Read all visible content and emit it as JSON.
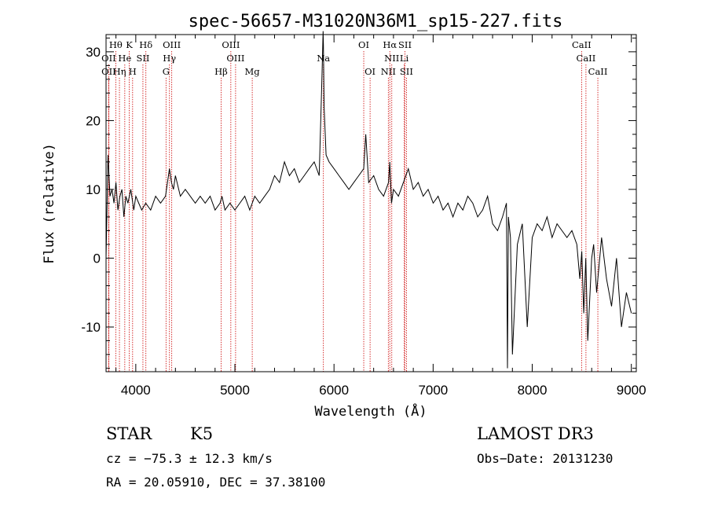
{
  "chart_data": {
    "type": "line",
    "title": "spec-56657-M31020N36M1_sp15-227.fits",
    "xlabel": "Wavelength (Å)",
    "ylabel": "Flux (relative)",
    "xlim": [
      3700,
      9050
    ],
    "ylim": [
      -16.5,
      32.5
    ],
    "xticks": [
      4000,
      5000,
      6000,
      7000,
      8000,
      9000
    ],
    "yticks": [
      -10,
      0,
      10,
      20,
      30
    ],
    "grid": false,
    "series": [
      {
        "x": [
          3700,
          3720,
          3740,
          3760,
          3780,
          3800,
          3820,
          3840,
          3860,
          3880,
          3900,
          3920,
          3950,
          3980,
          4000,
          4030,
          4060,
          4100,
          4150,
          4200,
          4250,
          4300,
          4320,
          4340,
          4360,
          4380,
          4400,
          4450,
          4500,
          4550,
          4600,
          4650,
          4700,
          4750,
          4800,
          4850,
          4870,
          4900,
          4950,
          5000,
          5050,
          5100,
          5150,
          5200,
          5250,
          5300,
          5350,
          5400,
          5450,
          5500,
          5550,
          5600,
          5650,
          5700,
          5750,
          5800,
          5850,
          5870,
          5880,
          5890,
          5893,
          5900,
          5920,
          5950,
          6000,
          6050,
          6100,
          6150,
          6200,
          6250,
          6300,
          6320,
          6350,
          6400,
          6450,
          6500,
          6550,
          6563,
          6580,
          6600,
          6650,
          6700,
          6750,
          6800,
          6850,
          6900,
          6950,
          7000,
          7050,
          7100,
          7150,
          7200,
          7250,
          7300,
          7350,
          7400,
          7450,
          7500,
          7550,
          7600,
          7650,
          7700,
          7740,
          7750,
          7760,
          7780,
          7800,
          7850,
          7900,
          7950,
          8000,
          8050,
          8100,
          8150,
          8200,
          8250,
          8300,
          8350,
          8400,
          8450,
          8480,
          8500,
          8520,
          8540,
          8560,
          8600,
          8620,
          8650,
          8700,
          8750,
          8800,
          8850,
          8900,
          8950,
          9000
        ],
        "y": [
          0,
          15,
          9,
          10,
          8,
          11,
          7,
          9,
          10,
          6,
          9,
          8,
          10,
          7,
          9,
          8,
          7,
          8,
          7,
          9,
          8,
          9,
          11,
          13,
          11,
          10,
          12,
          9,
          10,
          9,
          8,
          9,
          8,
          9,
          7,
          8,
          9,
          7,
          8,
          7,
          8,
          9,
          7,
          9,
          8,
          9,
          10,
          12,
          11,
          14,
          12,
          13,
          11,
          12,
          13,
          14,
          12,
          22,
          27,
          33,
          31,
          22,
          15,
          14,
          13,
          12,
          11,
          10,
          11,
          12,
          13,
          18,
          11,
          12,
          10,
          9,
          11,
          14,
          8,
          10,
          9,
          11,
          13,
          10,
          11,
          9,
          10,
          8,
          9,
          7,
          8,
          6,
          8,
          7,
          9,
          8,
          6,
          7,
          9,
          5,
          4,
          6,
          8,
          -16,
          6,
          3,
          -14,
          2,
          5,
          -10,
          3,
          5,
          4,
          6,
          3,
          5,
          4,
          3,
          4,
          2,
          -3,
          1,
          -8,
          0,
          -12,
          0,
          2,
          -5,
          3,
          -3,
          -7,
          0,
          -10,
          -5,
          -8
        ]
      }
    ],
    "lines": [
      {
        "label": "Hθ",
        "wl": 3798,
        "row": 1
      },
      {
        "label": "K",
        "wl": 3934,
        "row": 1
      },
      {
        "label": "Hδ",
        "wl": 4102,
        "row": 1
      },
      {
        "label": "OIII",
        "wl": 4363,
        "row": 1
      },
      {
        "label": "OIII",
        "wl": 4959,
        "row": 1
      },
      {
        "label": "OI",
        "wl": 6300,
        "row": 1
      },
      {
        "label": "Hα",
        "wl": 6563,
        "row": 1
      },
      {
        "label": "SII",
        "wl": 6716,
        "row": 1
      },
      {
        "label": "CaII",
        "wl": 8498,
        "row": 1
      },
      {
        "label": "OII",
        "wl": 3727,
        "row": 2
      },
      {
        "label": "He",
        "wl": 3889,
        "row": 2
      },
      {
        "label": "SII",
        "wl": 4072,
        "row": 2
      },
      {
        "label": "Hγ",
        "wl": 4340,
        "row": 2
      },
      {
        "label": "OIII",
        "wl": 5007,
        "row": 2
      },
      {
        "label": "Na",
        "wl": 5893,
        "row": 2
      },
      {
        "label": "NII",
        "wl": 6583,
        "row": 2
      },
      {
        "label": "Li",
        "wl": 6708,
        "row": 2
      },
      {
        "label": "CaII",
        "wl": 8542,
        "row": 2
      },
      {
        "label": "OII",
        "wl": 3727,
        "row": 3
      },
      {
        "label": "Hη",
        "wl": 3835,
        "row": 3
      },
      {
        "label": "H",
        "wl": 3968,
        "row": 3
      },
      {
        "label": "G",
        "wl": 4305,
        "row": 3
      },
      {
        "label": "Hβ",
        "wl": 4861,
        "row": 3
      },
      {
        "label": "Mg",
        "wl": 5175,
        "row": 3
      },
      {
        "label": "OI",
        "wl": 6364,
        "row": 3
      },
      {
        "label": "NII",
        "wl": 6548,
        "row": 3
      },
      {
        "label": "SII",
        "wl": 6731,
        "row": 3
      },
      {
        "label": "CaII",
        "wl": 8662,
        "row": 3
      }
    ]
  },
  "info": {
    "class": "STAR",
    "subclass": "K5",
    "survey": "LAMOST DR3",
    "cz": "cz = −75.3 ± 12.3 km/s",
    "obs_date": "Obs−Date: 20131230",
    "radec": "RA =  20.05910, DEC =  37.38100"
  }
}
